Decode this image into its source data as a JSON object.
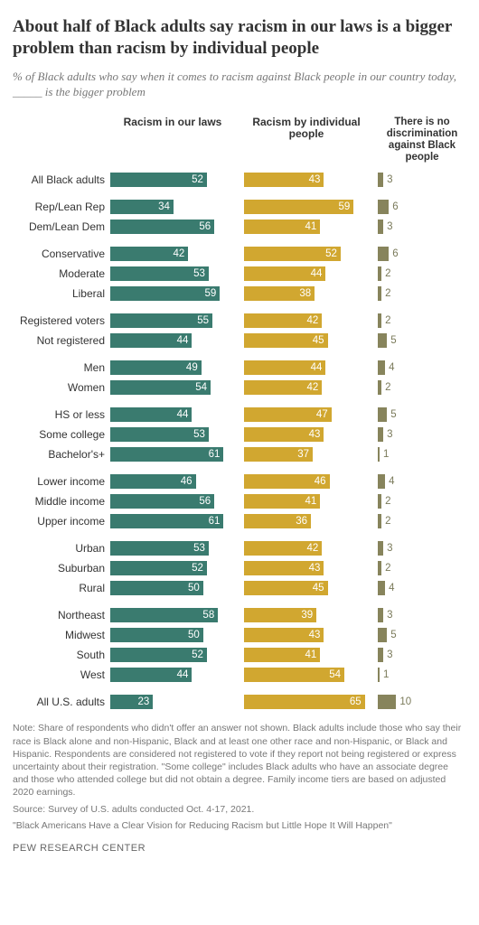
{
  "title": "About half of Black adults say racism in our laws is a bigger problem than racism by individual people",
  "subtitle": "% of Black adults who say when it comes to racism against Black people in our country today, _____ is the bigger problem",
  "columns": {
    "c1": "Racism in our laws",
    "c2": "Racism by individual people",
    "c3": "There is no discrimination against Black people"
  },
  "colors": {
    "c1": "#3a7b6f",
    "c2": "#d1a730",
    "c3": "#87845c",
    "bg": "#ffffff"
  },
  "scale": {
    "c1_max": 72,
    "c2_max": 72,
    "c3_max": 48
  },
  "groups": [
    {
      "rows": [
        {
          "label": "All Black adults",
          "v1": 52,
          "v2": 43,
          "v3": 3
        }
      ]
    },
    {
      "rows": [
        {
          "label": "Rep/Lean Rep",
          "v1": 34,
          "v2": 59,
          "v3": 6
        },
        {
          "label": "Dem/Lean Dem",
          "v1": 56,
          "v2": 41,
          "v3": 3
        }
      ]
    },
    {
      "rows": [
        {
          "label": "Conservative",
          "v1": 42,
          "v2": 52,
          "v3": 6
        },
        {
          "label": "Moderate",
          "v1": 53,
          "v2": 44,
          "v3": 2
        },
        {
          "label": "Liberal",
          "v1": 59,
          "v2": 38,
          "v3": 2
        }
      ]
    },
    {
      "rows": [
        {
          "label": "Registered voters",
          "v1": 55,
          "v2": 42,
          "v3": 2
        },
        {
          "label": "Not registered",
          "v1": 44,
          "v2": 45,
          "v3": 5
        }
      ]
    },
    {
      "rows": [
        {
          "label": "Men",
          "v1": 49,
          "v2": 44,
          "v3": 4
        },
        {
          "label": "Women",
          "v1": 54,
          "v2": 42,
          "v3": 2
        }
      ]
    },
    {
      "rows": [
        {
          "label": "HS or less",
          "v1": 44,
          "v2": 47,
          "v3": 5
        },
        {
          "label": "Some college",
          "v1": 53,
          "v2": 43,
          "v3": 3
        },
        {
          "label": "Bachelor's+",
          "v1": 61,
          "v2": 37,
          "v3": 1
        }
      ]
    },
    {
      "rows": [
        {
          "label": "Lower income",
          "v1": 46,
          "v2": 46,
          "v3": 4
        },
        {
          "label": "Middle income",
          "v1": 56,
          "v2": 41,
          "v3": 2
        },
        {
          "label": "Upper income",
          "v1": 61,
          "v2": 36,
          "v3": 2
        }
      ]
    },
    {
      "rows": [
        {
          "label": "Urban",
          "v1": 53,
          "v2": 42,
          "v3": 3
        },
        {
          "label": "Suburban",
          "v1": 52,
          "v2": 43,
          "v3": 2
        },
        {
          "label": "Rural",
          "v1": 50,
          "v2": 45,
          "v3": 4
        }
      ]
    },
    {
      "rows": [
        {
          "label": "Northeast",
          "v1": 58,
          "v2": 39,
          "v3": 3
        },
        {
          "label": "Midwest",
          "v1": 50,
          "v2": 43,
          "v3": 5
        },
        {
          "label": "South",
          "v1": 52,
          "v2": 41,
          "v3": 3
        },
        {
          "label": "West",
          "v1": 44,
          "v2": 54,
          "v3": 1
        }
      ]
    },
    {
      "rows": [
        {
          "label": "All U.S. adults",
          "v1": 23,
          "v2": 65,
          "v3": 10
        }
      ]
    }
  ],
  "note": "Note: Share of respondents who didn't offer an answer not shown. Black adults include those who say their race is Black alone and non-Hispanic, Black and at least one other race and non-Hispanic, or Black and Hispanic. Respondents are considered not registered to vote if they report not being registered or express uncertainty about their registration. \"Some college\" includes Black adults who have an associate degree and those who attended college but did not obtain a degree. Family income tiers are based on adjusted 2020 earnings.",
  "source": "Source: Survey of U.S. adults conducted Oct. 4-17, 2021.",
  "reportTitle": "\"Black Americans Have a Clear Vision for Reducing Racism but Little Hope It Will Happen\"",
  "footer": "PEW RESEARCH CENTER"
}
